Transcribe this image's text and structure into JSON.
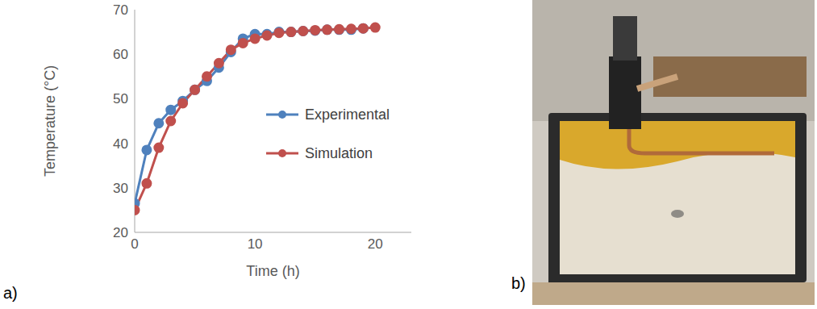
{
  "chart_data": {
    "type": "line",
    "x_label": "Time (h)",
    "y_label": "Temperature (°C)",
    "x": [
      0,
      1,
      2,
      3,
      4,
      5,
      6,
      7,
      8,
      9,
      10,
      11,
      12,
      13,
      14,
      15,
      16,
      17,
      18,
      19,
      20
    ],
    "series": [
      {
        "name": "Experimental",
        "color": "#4f81bd",
        "marker": "circle",
        "values": [
          26.5,
          38.5,
          44.5,
          47.5,
          49.5,
          52,
          54,
          57,
          60.5,
          63.5,
          64.5,
          64.5,
          65,
          65,
          65.2,
          65.3,
          65.5,
          65.5,
          65.5,
          65.8,
          null
        ]
      },
      {
        "name": "Simulation",
        "color": "#c0504d",
        "marker": "circle",
        "values": [
          25,
          31,
          39,
          45,
          49,
          52,
          55,
          58,
          61,
          62.5,
          63.5,
          64.2,
          64.8,
          65,
          65.2,
          65.4,
          65.5,
          65.6,
          65.7,
          65.8,
          66
        ]
      }
    ],
    "xlim": [
      0,
      23
    ],
    "xticks": [
      0,
      10,
      20
    ],
    "ylim": [
      20,
      70
    ],
    "yticks": [
      20,
      30,
      40,
      50,
      60,
      70
    ],
    "grid": false,
    "legend": "right"
  },
  "panel_labels": [
    "a)",
    "b)"
  ]
}
